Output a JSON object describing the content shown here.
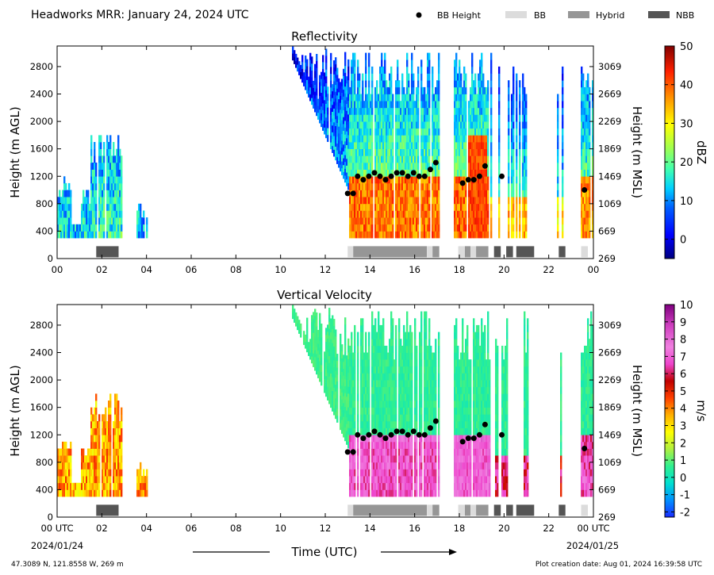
{
  "title": "Headworks MRR:  January 24, 2024 UTC",
  "legend": [
    {
      "label": "BB Height",
      "kind": "dot",
      "color": "#000000"
    },
    {
      "label": "BB",
      "kind": "bar",
      "color": "#dcdcdc"
    },
    {
      "label": "Hybrid",
      "kind": "bar",
      "color": "#969696"
    },
    {
      "label": "NBB",
      "kind": "bar",
      "color": "#555555"
    }
  ],
  "footer": {
    "location": "47.3089 N, 121.8558 W, 269 m",
    "created": "Plot creation date: Aug 01, 2024 16:39:58 UTC",
    "xlabel": "Time (UTC)",
    "start_date": "2024/01/24",
    "end_date": "2024/01/25"
  },
  "chart_data": [
    {
      "type": "heatmap",
      "title": "Reflectivity",
      "ylabel": "Height (m AGL)",
      "ylabel_right": "Height (m MSL)",
      "colorbar_label": "dBZ",
      "colorbar_ticks": [
        0,
        10,
        20,
        30,
        40,
        50
      ],
      "colorbar_range": [
        -5,
        50
      ],
      "xlim": [
        0,
        24
      ],
      "ylim": [
        0,
        3100
      ],
      "x_ticks": [
        "00",
        "02",
        "04",
        "06",
        "08",
        "10",
        "12",
        "14",
        "16",
        "18",
        "20",
        "22",
        "00"
      ],
      "y_ticks": [
        0,
        400,
        800,
        1200,
        1600,
        2000,
        2400,
        2800
      ],
      "y_ticks_right": [
        269,
        669,
        1069,
        1469,
        1869,
        2269,
        2669,
        3069
      ],
      "bb_height": [
        [
          13.0,
          950
        ],
        [
          13.25,
          950
        ],
        [
          13.45,
          1200
        ],
        [
          13.7,
          1150
        ],
        [
          13.95,
          1200
        ],
        [
          14.2,
          1250
        ],
        [
          14.45,
          1200
        ],
        [
          14.7,
          1150
        ],
        [
          14.95,
          1200
        ],
        [
          15.2,
          1250
        ],
        [
          15.45,
          1250
        ],
        [
          15.7,
          1200
        ],
        [
          15.95,
          1250
        ],
        [
          16.2,
          1200
        ],
        [
          16.45,
          1200
        ],
        [
          16.7,
          1300
        ],
        [
          16.95,
          1400
        ],
        [
          18.15,
          1100
        ],
        [
          18.4,
          1150
        ],
        [
          18.65,
          1150
        ],
        [
          18.9,
          1200
        ],
        [
          19.15,
          1350
        ],
        [
          19.9,
          1200
        ],
        [
          23.6,
          1000
        ]
      ],
      "bb_type": [
        {
          "start": 1.75,
          "end": 2.75,
          "type": "NBB"
        },
        {
          "start": 13.0,
          "end": 13.25,
          "type": "BB"
        },
        {
          "start": 13.25,
          "end": 16.55,
          "type": "Hybrid"
        },
        {
          "start": 16.55,
          "end": 16.8,
          "type": "BB"
        },
        {
          "start": 16.8,
          "end": 17.1,
          "type": "Hybrid"
        },
        {
          "start": 17.95,
          "end": 18.25,
          "type": "BB"
        },
        {
          "start": 18.25,
          "end": 18.5,
          "type": "Hybrid"
        },
        {
          "start": 18.5,
          "end": 18.75,
          "type": "BB"
        },
        {
          "start": 18.75,
          "end": 19.3,
          "type": "Hybrid"
        },
        {
          "start": 19.55,
          "end": 19.85,
          "type": "NBB"
        },
        {
          "start": 20.1,
          "end": 20.4,
          "type": "NBB"
        },
        {
          "start": 20.55,
          "end": 21.35,
          "type": "NBB"
        },
        {
          "start": 22.45,
          "end": 22.75,
          "type": "NBB"
        },
        {
          "start": 23.45,
          "end": 23.75,
          "type": "BB"
        }
      ]
    },
    {
      "type": "heatmap",
      "title": "Vertical Velocity",
      "ylabel": "Height (m AGL)",
      "ylabel_right": "Height (m MSL)",
      "colorbar_label": "m/s",
      "colorbar_ticks": [
        -2,
        -1,
        0,
        1,
        2,
        3,
        4,
        5,
        6,
        7,
        8,
        9,
        10
      ],
      "colorbar_range": [
        -2.3,
        10
      ],
      "xlim": [
        0,
        24
      ],
      "ylim": [
        0,
        3100
      ],
      "x_ticks": [
        "00 UTC",
        "02",
        "04",
        "06",
        "08",
        "10",
        "12",
        "14",
        "16",
        "18",
        "20",
        "22",
        "00 UTC"
      ],
      "y_ticks": [
        0,
        400,
        800,
        1200,
        1600,
        2000,
        2400,
        2800
      ],
      "y_ticks_right": [
        269,
        669,
        1069,
        1469,
        1869,
        2269,
        2669,
        3069
      ],
      "bb_height": [
        [
          13.0,
          950
        ],
        [
          13.25,
          950
        ],
        [
          13.45,
          1200
        ],
        [
          13.7,
          1150
        ],
        [
          13.95,
          1200
        ],
        [
          14.2,
          1250
        ],
        [
          14.45,
          1200
        ],
        [
          14.7,
          1150
        ],
        [
          14.95,
          1200
        ],
        [
          15.2,
          1250
        ],
        [
          15.45,
          1250
        ],
        [
          15.7,
          1200
        ],
        [
          15.95,
          1250
        ],
        [
          16.2,
          1200
        ],
        [
          16.45,
          1200
        ],
        [
          16.7,
          1300
        ],
        [
          16.95,
          1400
        ],
        [
          18.15,
          1100
        ],
        [
          18.4,
          1150
        ],
        [
          18.65,
          1150
        ],
        [
          18.9,
          1200
        ],
        [
          19.15,
          1350
        ],
        [
          19.9,
          1200
        ],
        [
          23.6,
          1000
        ]
      ],
      "bb_type": [
        {
          "start": 1.75,
          "end": 2.75,
          "type": "NBB"
        },
        {
          "start": 13.0,
          "end": 13.25,
          "type": "BB"
        },
        {
          "start": 13.25,
          "end": 16.55,
          "type": "Hybrid"
        },
        {
          "start": 16.55,
          "end": 16.8,
          "type": "BB"
        },
        {
          "start": 16.8,
          "end": 17.1,
          "type": "Hybrid"
        },
        {
          "start": 17.95,
          "end": 18.25,
          "type": "BB"
        },
        {
          "start": 18.25,
          "end": 18.5,
          "type": "Hybrid"
        },
        {
          "start": 18.5,
          "end": 18.75,
          "type": "BB"
        },
        {
          "start": 18.75,
          "end": 19.3,
          "type": "Hybrid"
        },
        {
          "start": 19.55,
          "end": 19.85,
          "type": "NBB"
        },
        {
          "start": 20.1,
          "end": 20.4,
          "type": "NBB"
        },
        {
          "start": 20.55,
          "end": 21.35,
          "type": "NBB"
        },
        {
          "start": 22.45,
          "end": 22.75,
          "type": "NBB"
        },
        {
          "start": 23.45,
          "end": 23.75,
          "type": "BB"
        }
      ]
    }
  ]
}
